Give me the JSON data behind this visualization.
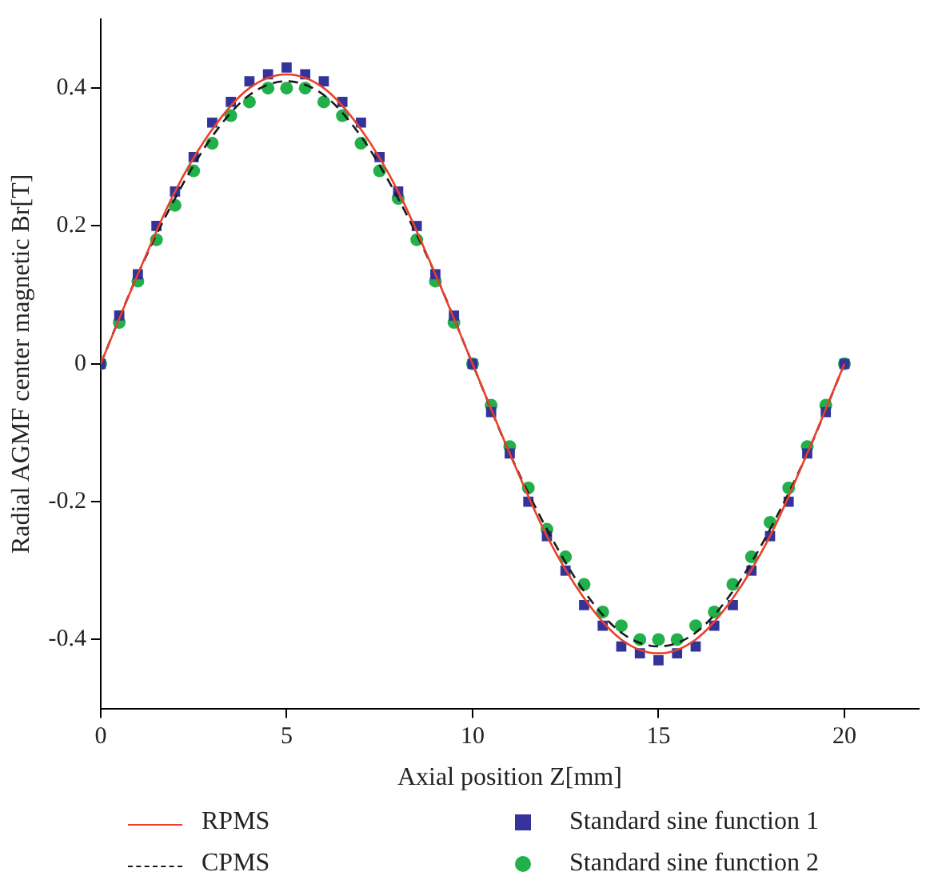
{
  "chart_data": {
    "type": "line",
    "xlabel": "Axial position Z[mm]",
    "ylabel": "Radial AGMF center magnetic Br[T]",
    "xlim": [
      0,
      22
    ],
    "xticks": [
      0,
      5,
      10,
      15,
      20
    ],
    "ylim": [
      -0.5,
      0.5
    ],
    "yticks": [
      {
        "value": -0.4,
        "label": "-0.4"
      },
      {
        "value": -0.2,
        "label": "-0.2"
      },
      0,
      0.2,
      0.4
    ],
    "grid": false,
    "legend": "bottom",
    "series": [
      {
        "name": "RPMS",
        "type": "line",
        "color": "#e8412c",
        "line_style": "solid",
        "marker": "none",
        "x": [
          0,
          1,
          2,
          3,
          4,
          5,
          6,
          7,
          8,
          9,
          10,
          11,
          12,
          13,
          14,
          15,
          16,
          17,
          18,
          19,
          20
        ],
        "values": [
          0,
          0.13,
          0.25,
          0.34,
          0.4,
          0.42,
          0.4,
          0.34,
          0.25,
          0.13,
          0,
          -0.13,
          -0.25,
          -0.34,
          -0.4,
          -0.42,
          -0.4,
          -0.34,
          -0.25,
          -0.13,
          0
        ]
      },
      {
        "name": "CPMS",
        "type": "line",
        "color": "#1a1a1a",
        "line_style": "dashed",
        "marker": "none",
        "x": [
          0,
          1,
          2,
          3,
          4,
          5,
          6,
          7,
          8,
          9,
          10,
          11,
          12,
          13,
          14,
          15,
          16,
          17,
          18,
          19,
          20
        ],
        "values": [
          0,
          0.13,
          0.24,
          0.33,
          0.39,
          0.41,
          0.39,
          0.33,
          0.24,
          0.13,
          0,
          -0.13,
          -0.24,
          -0.33,
          -0.39,
          -0.41,
          -0.39,
          -0.33,
          -0.24,
          -0.13,
          0
        ]
      },
      {
        "name": "Standard sine function 1",
        "type": "scatter",
        "color": "#33339a",
        "marker": "square",
        "x": [
          0,
          0.5,
          1,
          1.5,
          2,
          2.5,
          3,
          3.5,
          4,
          4.5,
          5,
          5.5,
          6,
          6.5,
          7,
          7.5,
          8,
          8.5,
          9,
          9.5,
          10,
          10.5,
          11,
          11.5,
          12,
          12.5,
          13,
          13.5,
          14,
          14.5,
          15,
          15.5,
          16,
          16.5,
          17,
          17.5,
          18,
          18.5,
          19,
          19.5,
          20
        ],
        "values": [
          0,
          0.07,
          0.13,
          0.2,
          0.25,
          0.3,
          0.35,
          0.38,
          0.41,
          0.42,
          0.43,
          0.42,
          0.41,
          0.38,
          0.35,
          0.3,
          0.25,
          0.2,
          0.13,
          0.07,
          0,
          -0.07,
          -0.13,
          -0.2,
          -0.25,
          -0.3,
          -0.35,
          -0.38,
          -0.41,
          -0.42,
          -0.43,
          -0.42,
          -0.41,
          -0.38,
          -0.35,
          -0.3,
          -0.25,
          -0.2,
          -0.13,
          -0.07,
          0
        ]
      },
      {
        "name": "Standard sine function 2",
        "type": "scatter",
        "color": "#22b04a",
        "marker": "circle",
        "x": [
          0,
          0.5,
          1,
          1.5,
          2,
          2.5,
          3,
          3.5,
          4,
          4.5,
          5,
          5.5,
          6,
          6.5,
          7,
          7.5,
          8,
          8.5,
          9,
          9.5,
          10,
          10.5,
          11,
          11.5,
          12,
          12.5,
          13,
          13.5,
          14,
          14.5,
          15,
          15.5,
          16,
          16.5,
          17,
          17.5,
          18,
          18.5,
          19,
          19.5,
          20
        ],
        "values": [
          0,
          0.06,
          0.12,
          0.18,
          0.23,
          0.28,
          0.32,
          0.36,
          0.38,
          0.4,
          0.4,
          0.4,
          0.38,
          0.36,
          0.32,
          0.28,
          0.24,
          0.18,
          0.12,
          0.06,
          0,
          -0.06,
          -0.12,
          -0.18,
          -0.24,
          -0.28,
          -0.32,
          -0.36,
          -0.38,
          -0.4,
          -0.4,
          -0.4,
          -0.38,
          -0.36,
          -0.32,
          -0.28,
          -0.23,
          -0.18,
          -0.12,
          -0.06,
          0
        ]
      }
    ]
  }
}
